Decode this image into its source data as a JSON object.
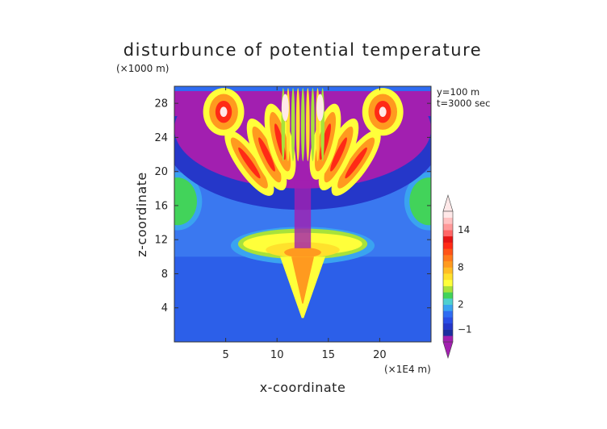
{
  "chart_data": {
    "type": "heatmap",
    "title": "disturbunce of potential temperature",
    "xlabel": "x-coordinate",
    "ylabel": "z-coordinate",
    "x_unit": "(×1E4 m)",
    "y_unit": "(×1000 m)",
    "info": [
      "y=100 m",
      "t=3000 sec"
    ],
    "xlim": [
      0,
      25
    ],
    "ylim": [
      0,
      30
    ],
    "x_ticks": [
      5,
      10,
      15,
      20
    ],
    "y_ticks": [
      4,
      8,
      12,
      16,
      20,
      24,
      28
    ],
    "colorbar": {
      "labels": [
        {
          "level": 14,
          "text": "14"
        },
        {
          "level": 8,
          "text": "8"
        },
        {
          "level": 2,
          "text": "2"
        },
        {
          "level": -1,
          "text": "−1"
        }
      ],
      "levels": [
        -2,
        -1.5,
        -1,
        -0.5,
        0,
        1,
        2,
        3,
        4,
        5,
        6,
        7,
        8,
        9,
        10,
        11,
        12,
        13,
        14,
        15,
        16
      ],
      "colors": [
        "#a21fb0",
        "#1c2f9e",
        "#2537c9",
        "#2a4ee6",
        "#2f6cf2",
        "#3aa3f0",
        "#4fd0cf",
        "#42d35a",
        "#a8e23a",
        "#ffff3a",
        "#ffe12c",
        "#ffbd24",
        "#ff9a1f",
        "#ff7a1c",
        "#ff5418",
        "#ff2a16",
        "#e51414",
        "#ff6666",
        "#ff9a9a",
        "#ffc2c2",
        "#ffe8e8"
      ]
    }
  }
}
